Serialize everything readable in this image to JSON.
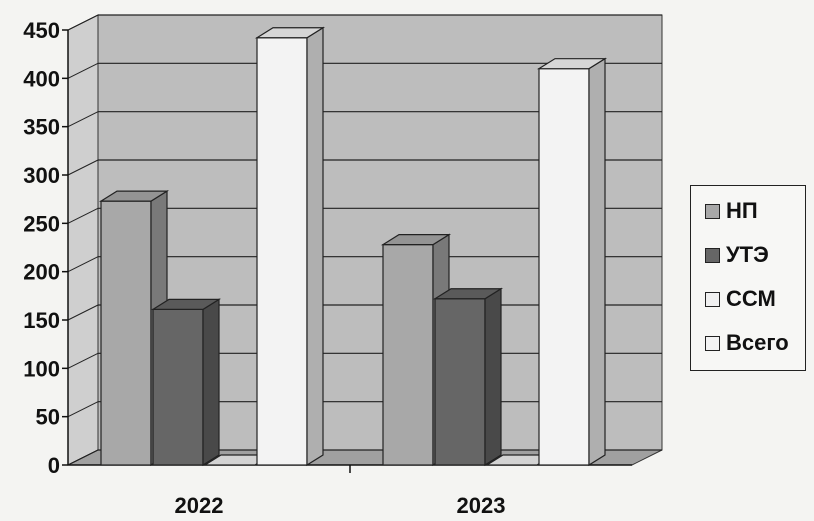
{
  "chart_data": {
    "type": "bar",
    "categories": [
      "2022",
      "2023"
    ],
    "series": [
      {
        "name": "НП",
        "values": [
          273,
          228
        ],
        "color": "#a8a8a8"
      },
      {
        "name": "УТЭ",
        "values": [
          161,
          172
        ],
        "color": "#666666"
      },
      {
        "name": "ССМ",
        "values": [
          0,
          0
        ],
        "color": "#f0f0f0"
      },
      {
        "name": "Всего",
        "values": [
          442,
          410
        ],
        "color": "#f3f3f3"
      }
    ],
    "y_ticks": [
      "0",
      "50",
      "100",
      "150",
      "200",
      "250",
      "300",
      "350",
      "400",
      "450"
    ],
    "ylim": [
      0,
      450
    ],
    "grid": true,
    "style": "3d-column",
    "legend_position": "right",
    "wall_color": "#bdbdbd",
    "floor_color": "#a0a0a0"
  }
}
